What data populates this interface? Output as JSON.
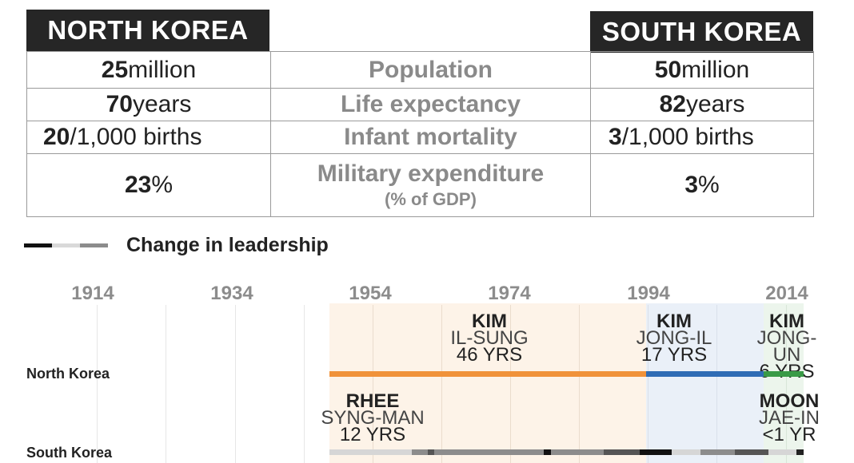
{
  "header": {
    "north": "NORTH KOREA",
    "south": "SOUTH KOREA"
  },
  "stats": [
    {
      "metric": "Population",
      "north_bold": "25",
      "north_rest": " million",
      "south_bold": "50",
      "south_rest": " million"
    },
    {
      "metric": "Life expectancy",
      "north_bold": "70",
      "north_rest": " years",
      "south_bold": "82",
      "south_rest": " years"
    },
    {
      "metric": "Infant mortality",
      "north_bold": "20",
      "north_rest": "/1,000 births",
      "south_bold": "3",
      "south_rest": "/1,000 births"
    },
    {
      "metric": "Military expenditure",
      "metric_sub": "(% of GDP)",
      "north_bold": "23",
      "north_rest": "%",
      "south_bold": "3",
      "south_rest": "%"
    }
  ],
  "timeline": {
    "legend_title": "Change in leadership",
    "years": [
      "1914",
      "1934",
      "1954",
      "1974",
      "1994",
      "2014"
    ],
    "rows": {
      "north": "North Korea",
      "south": "South Korea"
    },
    "north_leaders": [
      {
        "last": "KIM",
        "first": "IL-SUNG",
        "years": "46 YRS"
      },
      {
        "last": "KIM",
        "first": "JONG-IL",
        "years": "17 YRS"
      },
      {
        "last": "KIM",
        "first": "JONG-UN",
        "years": "6 YRS"
      }
    ],
    "south_leaders": [
      {
        "last": "RHEE",
        "first": "SYNG-MAN",
        "years": "12 YRS"
      },
      {
        "last": "MOON",
        "first": "JAE-IN",
        "years": "<1 YR"
      }
    ],
    "colors": {
      "kim_il_sung": "#f0923a",
      "kim_jong_il": "#2f6cb5",
      "kim_jong_un": "#3a9a47",
      "bg_il_sung": "#fdf3e8",
      "bg_jong_il": "#eaf0f8",
      "bg_jong_un": "#ecf5ec"
    }
  }
}
